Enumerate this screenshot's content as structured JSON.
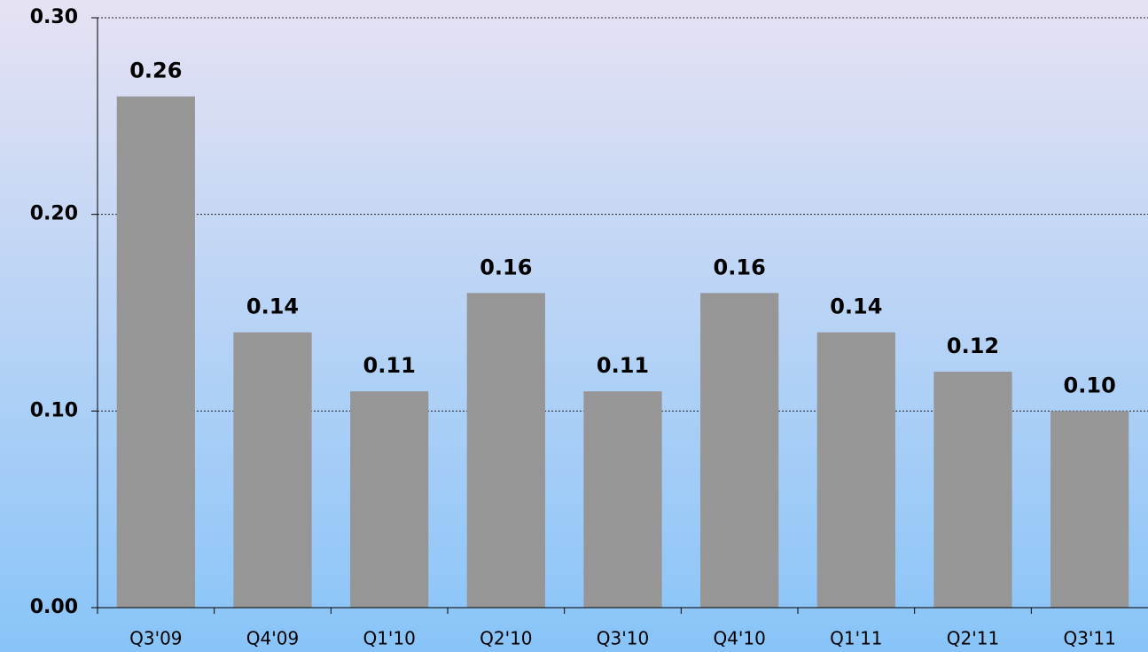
{
  "chart_data": {
    "type": "bar",
    "categories": [
      "Q3'09",
      "Q4'09",
      "Q1'10",
      "Q2'10",
      "Q3'10",
      "Q4'10",
      "Q1'11",
      "Q2'11",
      "Q3'11"
    ],
    "values": [
      0.26,
      0.14,
      0.11,
      0.16,
      0.11,
      0.16,
      0.14,
      0.12,
      0.1
    ],
    "value_labels": [
      "0.26",
      "0.14",
      "0.11",
      "0.16",
      "0.11",
      "0.16",
      "0.14",
      "0.12",
      "0.10"
    ],
    "color": "#969696",
    "ylim": [
      0,
      0.3
    ],
    "yticks": [
      {
        "value": 0,
        "label": "0.00"
      },
      {
        "value": 0.1,
        "label": "0.10"
      },
      {
        "value": 0.2,
        "label": "0.20"
      },
      {
        "value": 0.3,
        "label": "0.30"
      }
    ],
    "grid": true
  }
}
